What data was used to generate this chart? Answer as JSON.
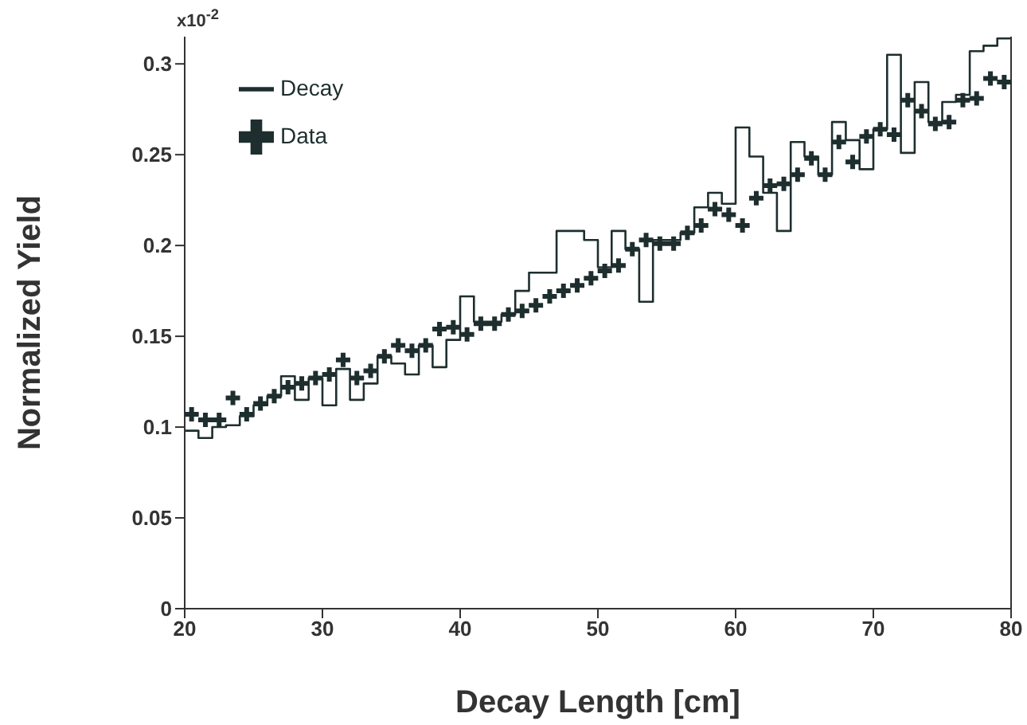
{
  "chart_data": {
    "type": "histogram",
    "xlabel": "Decay Length [cm]",
    "ylabel": "Normalized Yield",
    "annotations": [
      "x10$^{-2}$"
    ],
    "bins": [
      20,
      21,
      22,
      23,
      24,
      25,
      26,
      27,
      28,
      29,
      30,
      31,
      32,
      33,
      34,
      35,
      36,
      37,
      38,
      39,
      40,
      41,
      42,
      43,
      44,
      45,
      46,
      47,
      48,
      49,
      50,
      51,
      52,
      53,
      54,
      55,
      56,
      57,
      58,
      59,
      60,
      61,
      62,
      63,
      64,
      65,
      66,
      67,
      68,
      69,
      70,
      71,
      72,
      73,
      74,
      75,
      76,
      77,
      78,
      79,
      80
    ],
    "series": [
      {
        "name": "Decay",
        "type": "histogram",
        "color": "#1e2e2e",
        "values": [
          0.098,
          0.094,
          0.1,
          0.101,
          0.106,
          0.112,
          0.117,
          0.128,
          0.115,
          0.127,
          0.112,
          0.132,
          0.115,
          0.124,
          0.139,
          0.135,
          0.129,
          0.145,
          0.133,
          0.148,
          0.172,
          0.158,
          0.158,
          0.162,
          0.175,
          0.185,
          0.185,
          0.208,
          0.208,
          0.203,
          0.188,
          0.208,
          0.198,
          0.169,
          0.203,
          0.203,
          0.207,
          0.221,
          0.229,
          0.223,
          0.265,
          0.249,
          0.229,
          0.208,
          0.257,
          0.249,
          0.239,
          0.268,
          0.258,
          0.242,
          0.264,
          0.305,
          0.251,
          0.29,
          0.268,
          0.279,
          0.283,
          0.307,
          0.31,
          0.314
        ]
      },
      {
        "name": "Data",
        "type": "scatter",
        "color": "#1e2e2e",
        "marker": "cross",
        "x": [
          20.5,
          21.5,
          22.5,
          23.5,
          24.5,
          25.5,
          26.5,
          27.5,
          28.5,
          29.5,
          30.5,
          31.5,
          32.5,
          33.5,
          34.5,
          35.5,
          36.5,
          37.5,
          38.5,
          39.5,
          40.5,
          41.5,
          42.5,
          43.5,
          44.5,
          45.5,
          46.5,
          47.5,
          48.5,
          49.5,
          50.5,
          51.5,
          52.5,
          53.5,
          54.5,
          55.5,
          56.5,
          57.5,
          58.5,
          59.5,
          60.5,
          61.5,
          62.5,
          63.5,
          64.5,
          65.5,
          66.5,
          67.5,
          68.5,
          69.5,
          70.5,
          71.5,
          72.5,
          73.5,
          74.5,
          75.5,
          76.5,
          77.5,
          78.5,
          79.5
        ],
        "values": [
          0.107,
          0.104,
          0.104,
          0.116,
          0.107,
          0.113,
          0.117,
          0.122,
          0.124,
          0.127,
          0.129,
          0.137,
          0.127,
          0.131,
          0.139,
          0.145,
          0.142,
          0.145,
          0.154,
          0.155,
          0.151,
          0.157,
          0.157,
          0.162,
          0.164,
          0.167,
          0.172,
          0.175,
          0.178,
          0.182,
          0.186,
          0.189,
          0.198,
          0.203,
          0.201,
          0.201,
          0.207,
          0.211,
          0.22,
          0.217,
          0.211,
          0.226,
          0.233,
          0.234,
          0.239,
          0.248,
          0.239,
          0.257,
          0.246,
          0.26,
          0.264,
          0.261,
          0.28,
          0.274,
          0.267,
          0.268,
          0.28,
          0.281,
          0.292,
          0.29
        ]
      }
    ],
    "xlim": [
      20,
      80
    ],
    "xticks": [
      20,
      30,
      40,
      50,
      60,
      70,
      80
    ],
    "ylim": [
      0,
      0.315
    ],
    "yticks": [
      0,
      0.05,
      0.1,
      0.15,
      0.2,
      0.25,
      0.3
    ],
    "legend": "top left"
  }
}
